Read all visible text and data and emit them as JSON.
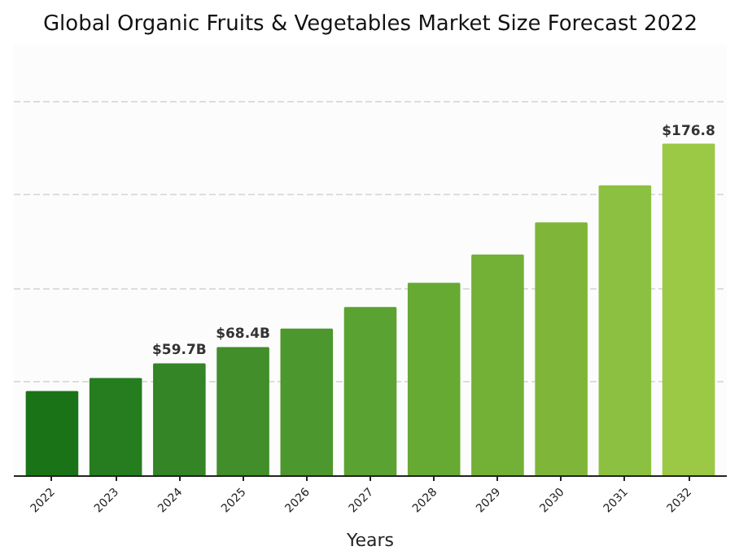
{
  "chart_data": {
    "type": "bar",
    "title": "Global Organic Fruits & Vegetables Market Size Forecast 2022",
    "xlabel": "Years",
    "categories": [
      "2022",
      "2023",
      "2024",
      "2025",
      "2026",
      "2027",
      "2028",
      "2029",
      "2030",
      "2031",
      "2032"
    ],
    "values": [
      44.9,
      51.9,
      59.7,
      68.4,
      78.2,
      89.7,
      102.6,
      117.7,
      134.8,
      154.6,
      176.8
    ],
    "colors": [
      "#1b7318",
      "#267d20",
      "#338526",
      "#418e2a",
      "#4d982e",
      "#5aa232",
      "#66a933",
      "#72b036",
      "#7fb63a",
      "#8cc040",
      "#9bc845"
    ],
    "value_labels": [
      null,
      null,
      "$59.7B",
      "$68.4B",
      null,
      null,
      null,
      null,
      null,
      null,
      "$176.8"
    ],
    "yticks": [
      {
        "value": 0,
        "label": null
      },
      {
        "value": 50,
        "label": null
      },
      {
        "value": 100,
        "label": null
      },
      {
        "value": 150,
        "label": null
      },
      {
        "value": 200,
        "label": null
      }
    ],
    "tick_labels": "x",
    "grid": "y"
  }
}
